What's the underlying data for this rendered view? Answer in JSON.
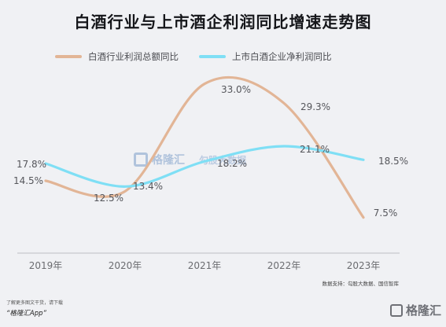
{
  "chart_data": {
    "type": "line",
    "title": "白酒行业与上市酒企利润同比增速走势图",
    "categories": [
      "2019年",
      "2020年",
      "2021年",
      "2022年",
      "2023年"
    ],
    "series": [
      {
        "name": "白酒行业利润总额同比",
        "values": [
          14.5,
          12.5,
          33.0,
          29.3,
          7.5
        ],
        "labels": [
          "14.5%",
          "12.5%",
          "33.0%",
          "29.3%",
          "7.5%"
        ],
        "color": "#e2b596"
      },
      {
        "name": "上市白酒企业净利润同比",
        "values": [
          17.8,
          13.4,
          18.2,
          21.1,
          18.5
        ],
        "labels": [
          "17.8%",
          "13.4%",
          "18.2%",
          "21.1%",
          "18.5%"
        ],
        "color": "#7fdff5"
      }
    ],
    "ylim": [
      4,
      37
    ],
    "grid": false,
    "legend": "top-left"
  },
  "source_note": "数据支持：勾股大数据、国信智库",
  "footer": {
    "line1": "了解更多图文干货，请下载",
    "line2": "“格隆汇App”",
    "logo": "格隆汇"
  },
  "watermark": {
    "text": "格隆汇",
    "sub": "勾股大数据"
  }
}
